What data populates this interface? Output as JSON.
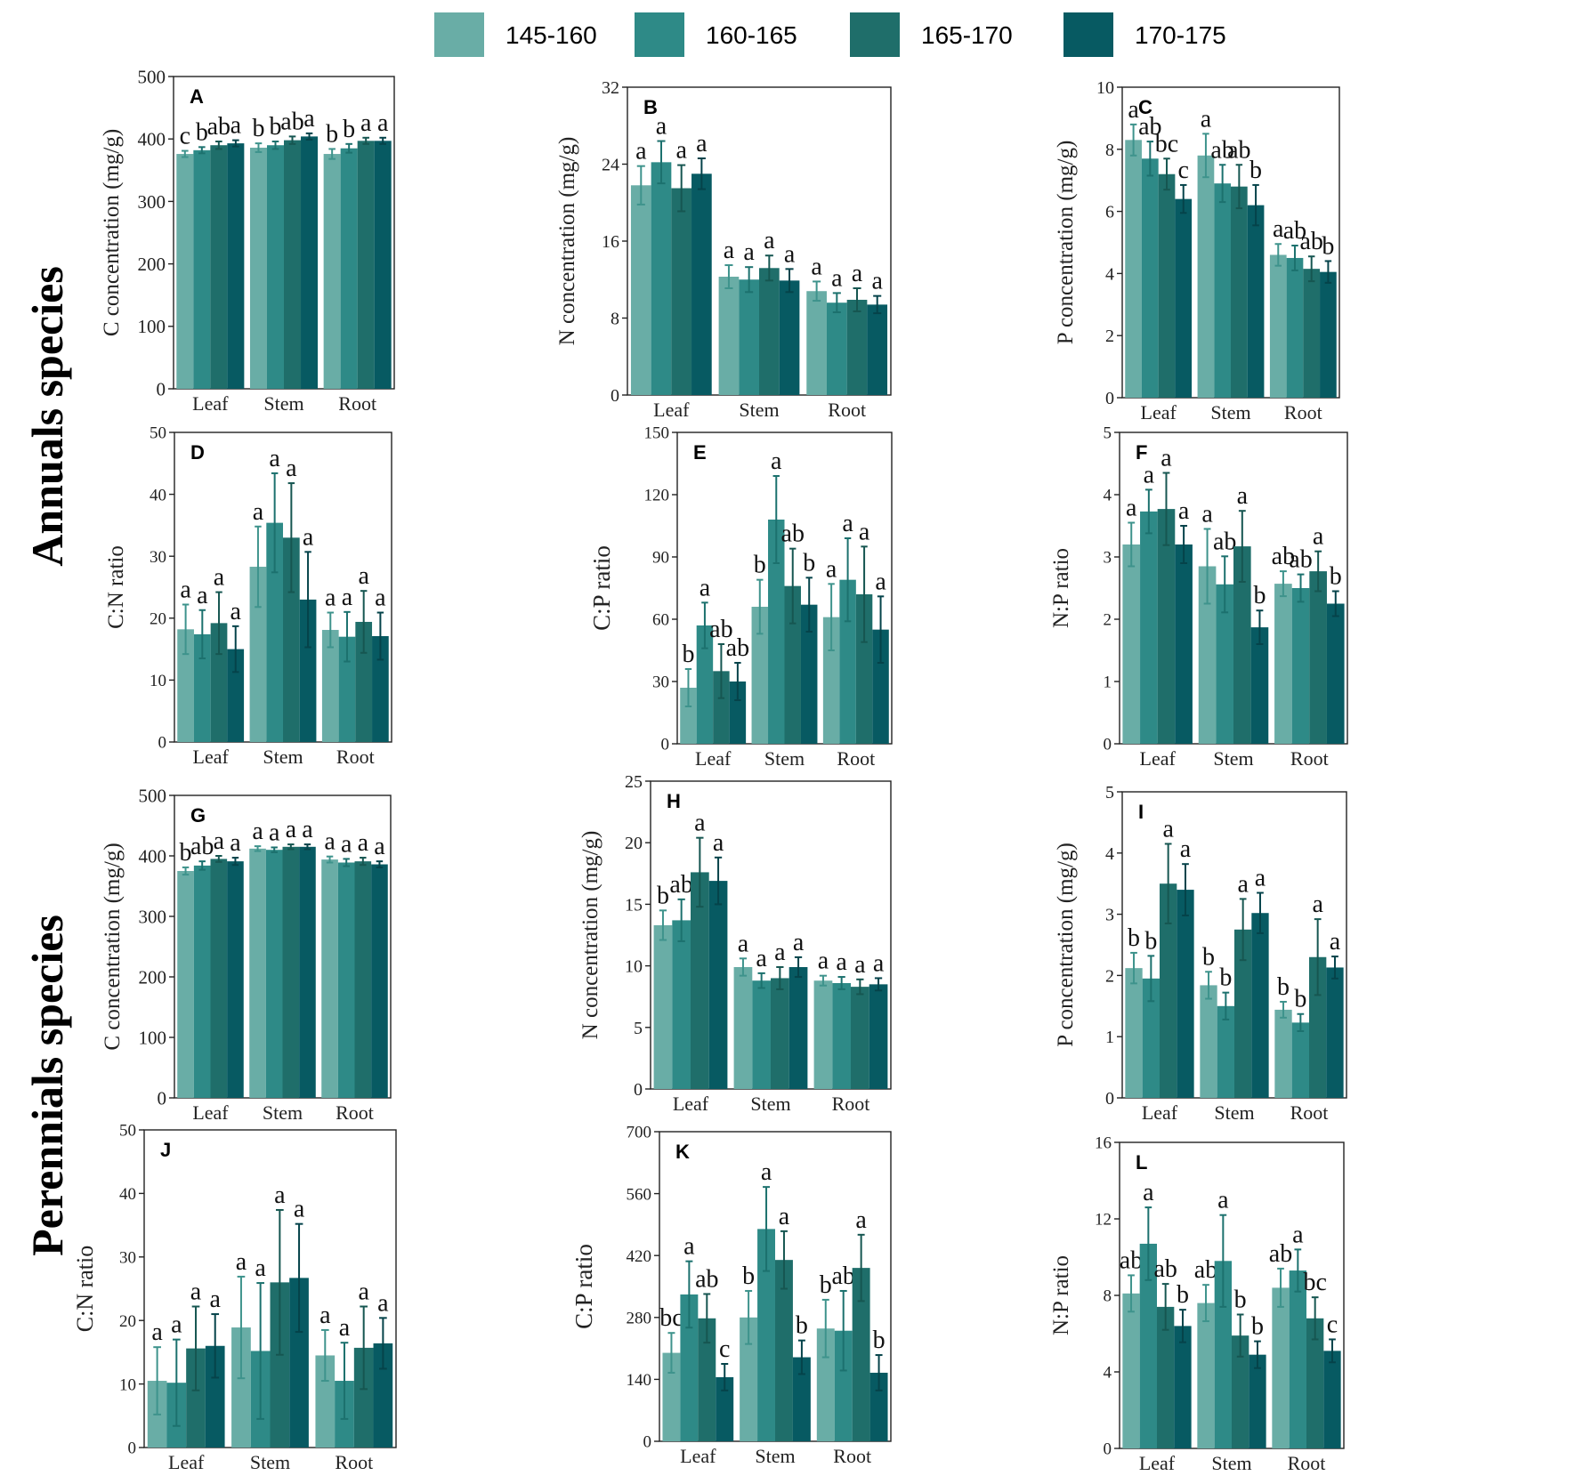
{
  "legend": {
    "items": [
      {
        "label": "145-160",
        "color": "#69ADA6"
      },
      {
        "label": "160-165",
        "color": "#2E8A87"
      },
      {
        "label": "165-170",
        "color": "#1F6E6A"
      },
      {
        "label": "170-175",
        "color": "#075A62"
      }
    ]
  },
  "row_labels": [
    "Annuals species",
    "Perennials species"
  ],
  "chart_data": [
    {
      "panel": "A",
      "type": "bar",
      "group": "Annuals species",
      "ylabel": "C concentration (mg/g)",
      "ylim": [
        0,
        500
      ],
      "ticks": [
        0,
        100,
        200,
        300,
        400,
        500
      ],
      "categories": [
        "Leaf",
        "Stem",
        "Root"
      ],
      "series": [
        {
          "name": "145-160",
          "values": [
            376,
            386,
            376
          ],
          "errors": [
            5,
            7,
            8
          ],
          "letters": [
            "c",
            "b",
            "b"
          ]
        },
        {
          "name": "160-165",
          "values": [
            382,
            390,
            385
          ],
          "errors": [
            5,
            6,
            7
          ],
          "letters": [
            "b",
            "b",
            "b"
          ]
        },
        {
          "name": "165-170",
          "values": [
            390,
            398,
            397
          ],
          "errors": [
            6,
            6,
            5
          ],
          "letters": [
            "ab",
            "ab",
            "a"
          ]
        },
        {
          "name": "170-175",
          "values": [
            393,
            404,
            397
          ],
          "errors": [
            5,
            5,
            5
          ],
          "letters": [
            "a",
            "a",
            "a"
          ]
        }
      ]
    },
    {
      "panel": "B",
      "type": "bar",
      "group": "Annuals species",
      "ylabel": "N concentration (mg/g)",
      "ylim": [
        0,
        32
      ],
      "ticks": [
        0,
        8,
        16,
        24,
        32
      ],
      "categories": [
        "Leaf",
        "Stem",
        "Root"
      ],
      "series": [
        {
          "name": "145-160",
          "values": [
            21.8,
            12.3,
            10.8
          ],
          "errors": [
            2.0,
            1.2,
            1.0
          ],
          "letters": [
            "a",
            "a",
            "a"
          ]
        },
        {
          "name": "160-165",
          "values": [
            24.2,
            12.0,
            9.6
          ],
          "errors": [
            2.2,
            1.3,
            1.0
          ],
          "letters": [
            "a",
            "a",
            "a"
          ]
        },
        {
          "name": "165-170",
          "values": [
            21.5,
            13.2,
            9.9
          ],
          "errors": [
            2.4,
            1.3,
            1.2
          ],
          "letters": [
            "a",
            "a",
            "a"
          ]
        },
        {
          "name": "170-175",
          "values": [
            23.0,
            11.9,
            9.4
          ],
          "errors": [
            1.6,
            1.2,
            0.9
          ],
          "letters": [
            "a",
            "a",
            "a"
          ]
        }
      ]
    },
    {
      "panel": "C",
      "type": "bar",
      "group": "Annuals species",
      "ylabel": "P concentration (mg/g)",
      "ylim": [
        0,
        10
      ],
      "ticks": [
        0,
        2,
        4,
        6,
        8,
        10
      ],
      "categories": [
        "Leaf",
        "Stem",
        "Root"
      ],
      "series": [
        {
          "name": "145-160",
          "values": [
            8.3,
            7.8,
            4.6
          ],
          "errors": [
            0.5,
            0.7,
            0.35
          ],
          "letters": [
            "a",
            "a",
            "a"
          ]
        },
        {
          "name": "160-165",
          "values": [
            7.7,
            6.9,
            4.5
          ],
          "errors": [
            0.55,
            0.6,
            0.4
          ],
          "letters": [
            "ab",
            "ab",
            "ab"
          ]
        },
        {
          "name": "165-170",
          "values": [
            7.2,
            6.8,
            4.15
          ],
          "errors": [
            0.5,
            0.7,
            0.4
          ],
          "letters": [
            "bc",
            "ab",
            "ab"
          ]
        },
        {
          "name": "170-175",
          "values": [
            6.4,
            6.2,
            4.05
          ],
          "errors": [
            0.45,
            0.65,
            0.35
          ],
          "letters": [
            "c",
            "b",
            "b"
          ]
        }
      ]
    },
    {
      "panel": "D",
      "type": "bar",
      "group": "Annuals species",
      "ylabel": "C:N ratio",
      "ylim": [
        0,
        50
      ],
      "ticks": [
        0,
        10,
        20,
        30,
        40,
        50
      ],
      "categories": [
        "Leaf",
        "Stem",
        "Root"
      ],
      "series": [
        {
          "name": "145-160",
          "values": [
            18.2,
            28.3,
            18.1
          ],
          "errors": [
            4.0,
            6.5,
            2.8
          ],
          "letters": [
            "a",
            "a",
            "a"
          ]
        },
        {
          "name": "160-165",
          "values": [
            17.4,
            35.4,
            17.0
          ],
          "errors": [
            3.9,
            8.0,
            4.0
          ],
          "letters": [
            "a",
            "a",
            "a"
          ]
        },
        {
          "name": "165-170",
          "values": [
            19.2,
            33.0,
            19.4
          ],
          "errors": [
            5.0,
            8.8,
            5.0
          ],
          "letters": [
            "a",
            "a",
            "a"
          ]
        },
        {
          "name": "170-175",
          "values": [
            15.0,
            23.0,
            17.1
          ],
          "errors": [
            3.7,
            7.7,
            3.8
          ],
          "letters": [
            "a",
            "a",
            "a"
          ]
        }
      ]
    },
    {
      "panel": "E",
      "type": "bar",
      "group": "Annuals species",
      "ylabel": "C:P ratio",
      "ylim": [
        0,
        150
      ],
      "ticks": [
        0,
        30,
        60,
        90,
        120,
        150
      ],
      "categories": [
        "Leaf",
        "Stem",
        "Root"
      ],
      "series": [
        {
          "name": "145-160",
          "values": [
            27,
            66,
            61
          ],
          "errors": [
            9,
            13,
            16
          ],
          "letters": [
            "b",
            "b",
            "a"
          ]
        },
        {
          "name": "160-165",
          "values": [
            57,
            108,
            79
          ],
          "errors": [
            11,
            21,
            20
          ],
          "letters": [
            "a",
            "a",
            "a"
          ]
        },
        {
          "name": "165-170",
          "values": [
            35,
            76,
            72
          ],
          "errors": [
            13,
            18,
            23
          ],
          "letters": [
            "ab",
            "ab",
            "a"
          ]
        },
        {
          "name": "170-175",
          "values": [
            30,
            67,
            55
          ],
          "errors": [
            9,
            13,
            16
          ],
          "letters": [
            "ab",
            "b",
            "a"
          ]
        }
      ]
    },
    {
      "panel": "F",
      "type": "bar",
      "group": "Annuals species",
      "ylabel": "N:P ratio",
      "ylim": [
        0,
        5
      ],
      "ticks": [
        0,
        1,
        2,
        3,
        4,
        5
      ],
      "categories": [
        "Leaf",
        "Stem",
        "Root"
      ],
      "series": [
        {
          "name": "145-160",
          "values": [
            3.2,
            2.85,
            2.57
          ],
          "errors": [
            0.35,
            0.6,
            0.2
          ],
          "letters": [
            "a",
            "a",
            "ab"
          ]
        },
        {
          "name": "160-165",
          "values": [
            3.73,
            2.56,
            2.5
          ],
          "errors": [
            0.35,
            0.45,
            0.22
          ],
          "letters": [
            "a",
            "ab",
            "ab"
          ]
        },
        {
          "name": "165-170",
          "values": [
            3.77,
            3.17,
            2.77
          ],
          "errors": [
            0.58,
            0.57,
            0.32
          ],
          "letters": [
            "a",
            "a",
            "a"
          ]
        },
        {
          "name": "170-175",
          "values": [
            3.2,
            1.87,
            2.25
          ],
          "errors": [
            0.3,
            0.27,
            0.2
          ],
          "letters": [
            "a",
            "b",
            "b"
          ]
        }
      ]
    },
    {
      "panel": "G",
      "type": "bar",
      "group": "Perennials species",
      "ylabel": "C concentration (mg/g)",
      "ylim": [
        0,
        500
      ],
      "ticks": [
        0,
        100,
        200,
        300,
        400,
        500
      ],
      "categories": [
        "Leaf",
        "Stem",
        "Root"
      ],
      "series": [
        {
          "name": "145-160",
          "values": [
            375,
            412,
            394
          ],
          "errors": [
            6,
            4,
            5
          ],
          "letters": [
            "b",
            "a",
            "a"
          ]
        },
        {
          "name": "160-165",
          "values": [
            384,
            410,
            389
          ],
          "errors": [
            7,
            4,
            6
          ],
          "letters": [
            "ab",
            "a",
            "a"
          ]
        },
        {
          "name": "165-170",
          "values": [
            395,
            415,
            391
          ],
          "errors": [
            5,
            4,
            6
          ],
          "letters": [
            "a",
            "a",
            "a"
          ]
        },
        {
          "name": "170-175",
          "values": [
            391,
            415,
            386
          ],
          "errors": [
            6,
            4,
            5
          ],
          "letters": [
            "a",
            "a",
            "a"
          ]
        }
      ]
    },
    {
      "panel": "H",
      "type": "bar",
      "group": "Perennials species",
      "ylabel": "N concentration (mg/g)",
      "ylim": [
        0,
        25
      ],
      "ticks": [
        0,
        5,
        10,
        15,
        20,
        25
      ],
      "categories": [
        "Leaf",
        "Stem",
        "Root"
      ],
      "series": [
        {
          "name": "145-160",
          "values": [
            13.3,
            9.9,
            8.8
          ],
          "errors": [
            1.2,
            0.7,
            0.4
          ],
          "letters": [
            "b",
            "a",
            "a"
          ]
        },
        {
          "name": "160-165",
          "values": [
            13.7,
            8.8,
            8.6
          ],
          "errors": [
            1.7,
            0.6,
            0.5
          ],
          "letters": [
            "ab",
            "a",
            "a"
          ]
        },
        {
          "name": "165-170",
          "values": [
            17.6,
            9.0,
            8.3
          ],
          "errors": [
            2.8,
            0.9,
            0.6
          ],
          "letters": [
            "a",
            "a",
            "a"
          ]
        },
        {
          "name": "170-175",
          "values": [
            16.9,
            9.9,
            8.5
          ],
          "errors": [
            1.9,
            0.8,
            0.5
          ],
          "letters": [
            "a",
            "a",
            "a"
          ]
        }
      ]
    },
    {
      "panel": "I",
      "type": "bar",
      "group": "Perennials species",
      "ylabel": "P concentration (mg/g)",
      "ylim": [
        0,
        5
      ],
      "ticks": [
        0,
        1,
        2,
        3,
        4,
        5
      ],
      "categories": [
        "Leaf",
        "Stem",
        "Root"
      ],
      "series": [
        {
          "name": "145-160",
          "values": [
            2.12,
            1.84,
            1.44
          ],
          "errors": [
            0.25,
            0.22,
            0.13
          ],
          "letters": [
            "b",
            "b",
            "b"
          ]
        },
        {
          "name": "160-165",
          "values": [
            1.95,
            1.5,
            1.23
          ],
          "errors": [
            0.37,
            0.22,
            0.14
          ],
          "letters": [
            "b",
            "b",
            "b"
          ]
        },
        {
          "name": "165-170",
          "values": [
            3.5,
            2.75,
            2.3
          ],
          "errors": [
            0.65,
            0.5,
            0.62
          ],
          "letters": [
            "a",
            "a",
            "a"
          ]
        },
        {
          "name": "170-175",
          "values": [
            3.4,
            3.02,
            2.13
          ],
          "errors": [
            0.42,
            0.33,
            0.18
          ],
          "letters": [
            "a",
            "a",
            "a"
          ]
        }
      ]
    },
    {
      "panel": "J",
      "type": "bar",
      "group": "Perennials species",
      "ylabel": "C:N ratio",
      "ylim": [
        0,
        50
      ],
      "ticks": [
        0,
        10,
        20,
        30,
        40,
        50
      ],
      "categories": [
        "Leaf",
        "Stem",
        "Root"
      ],
      "series": [
        {
          "name": "145-160",
          "values": [
            10.5,
            18.9,
            14.5
          ],
          "errors": [
            5.3,
            8.0,
            4.0
          ],
          "letters": [
            "a",
            "a",
            "a"
          ]
        },
        {
          "name": "160-165",
          "values": [
            10.2,
            15.2,
            10.5
          ],
          "errors": [
            6.8,
            10.7,
            6.0
          ],
          "letters": [
            "a",
            "a",
            "a"
          ]
        },
        {
          "name": "165-170",
          "values": [
            15.6,
            26.0,
            15.7
          ],
          "errors": [
            6.6,
            11.4,
            6.5
          ],
          "letters": [
            "a",
            "a",
            "a"
          ]
        },
        {
          "name": "170-175",
          "values": [
            16.0,
            26.7,
            16.4
          ],
          "errors": [
            5.0,
            8.5,
            4.0
          ],
          "letters": [
            "a",
            "a",
            "a"
          ]
        }
      ]
    },
    {
      "panel": "K",
      "type": "bar",
      "group": "Perennials species",
      "ylabel": "C:P ratio",
      "ylim": [
        0,
        700
      ],
      "ticks": [
        0,
        140,
        280,
        420,
        560,
        700
      ],
      "categories": [
        "Leaf",
        "Stem",
        "Root"
      ],
      "series": [
        {
          "name": "145-160",
          "values": [
            200,
            280,
            255
          ],
          "errors": [
            45,
            60,
            65
          ],
          "letters": [
            "bc",
            "b",
            "b"
          ]
        },
        {
          "name": "160-165",
          "values": [
            332,
            480,
            250
          ],
          "errors": [
            75,
            95,
            90
          ],
          "letters": [
            "a",
            "a",
            "ab"
          ]
        },
        {
          "name": "165-170",
          "values": [
            278,
            410,
            392
          ],
          "errors": [
            55,
            65,
            75
          ],
          "letters": [
            "ab",
            "a",
            "a"
          ]
        },
        {
          "name": "170-175",
          "values": [
            145,
            190,
            155
          ],
          "errors": [
            30,
            38,
            40
          ],
          "letters": [
            "c",
            "b",
            "b"
          ]
        }
      ]
    },
    {
      "panel": "L",
      "type": "bar",
      "group": "Perennials species",
      "ylabel": "N:P ratio",
      "ylim": [
        0,
        16
      ],
      "ticks": [
        0,
        4,
        8,
        12,
        16
      ],
      "categories": [
        "Leaf",
        "Stem",
        "Root"
      ],
      "series": [
        {
          "name": "145-160",
          "values": [
            8.1,
            7.6,
            8.4
          ],
          "errors": [
            0.95,
            0.95,
            1.0
          ],
          "letters": [
            "ab",
            "ab",
            "ab"
          ]
        },
        {
          "name": "160-165",
          "values": [
            10.7,
            9.8,
            9.3
          ],
          "errors": [
            1.9,
            2.4,
            1.1
          ],
          "letters": [
            "a",
            "a",
            "a"
          ]
        },
        {
          "name": "165-170",
          "values": [
            7.4,
            5.9,
            6.8
          ],
          "errors": [
            1.2,
            1.1,
            1.1
          ],
          "letters": [
            "ab",
            "b",
            "bc"
          ]
        },
        {
          "name": "170-175",
          "values": [
            6.4,
            4.9,
            5.1
          ],
          "errors": [
            0.85,
            0.7,
            0.6
          ],
          "letters": [
            "b",
            "b",
            "c"
          ]
        }
      ]
    }
  ]
}
